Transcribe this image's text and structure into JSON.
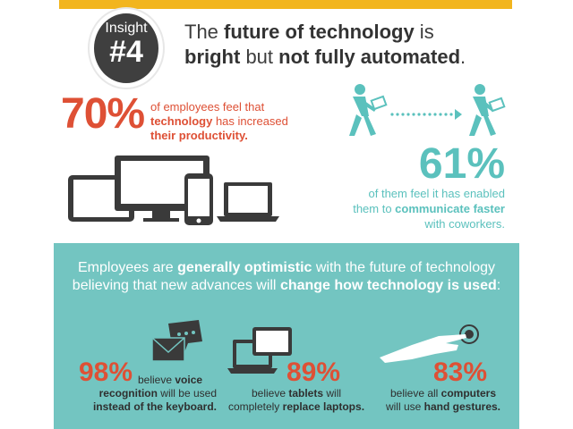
{
  "insight": {
    "label": "Insight",
    "number": "#4"
  },
  "headline": {
    "p1": "The ",
    "b1": "future of technology",
    "p2": " is",
    "b2": "bright",
    "p3": " but ",
    "b3": "not fully automated",
    "p4": "."
  },
  "stat70": {
    "value": "70%",
    "p1": "of employees feel that",
    "b1": "technology",
    "p2": " has increased",
    "b2": "their productivity."
  },
  "stat61": {
    "value": "61%",
    "p1": "of them feel it has enabled",
    "p2": "them to ",
    "b1": "communicate faster",
    "p3": "with coworkers."
  },
  "intro": {
    "p1": "Employees are ",
    "b1": "generally optimistic",
    "p2": " with the future of technology",
    "p3": "believing that new advances will ",
    "b2": "change how technology is used",
    "p4": ":"
  },
  "stats": [
    {
      "value": "98%",
      "p1": " believe ",
      "b1": "voice",
      "b2": "recognition",
      "p2": " will be used",
      "b3": "instead of the keyboard."
    },
    {
      "value": "89%",
      "p1": "believe ",
      "b1": "tablets",
      "p2": " will",
      "p3": "completely ",
      "b2": "replace laptops."
    },
    {
      "value": "83%",
      "p1": "believe all ",
      "b1": "computers",
      "p2": "will use ",
      "b2": "hand gestures."
    }
  ],
  "colors": {
    "accent_red": "#de5035",
    "teal": "#5bc1bd",
    "panel": "#73c5c1",
    "gold": "#f2b51e",
    "dark": "#3f3f3f"
  },
  "icons": [
    "tablet-icon",
    "monitor-icon",
    "phone-icon",
    "laptop-icon",
    "walking-person-icon",
    "envelope-icon",
    "chat-bubble-icon",
    "hand-touch-icon"
  ]
}
